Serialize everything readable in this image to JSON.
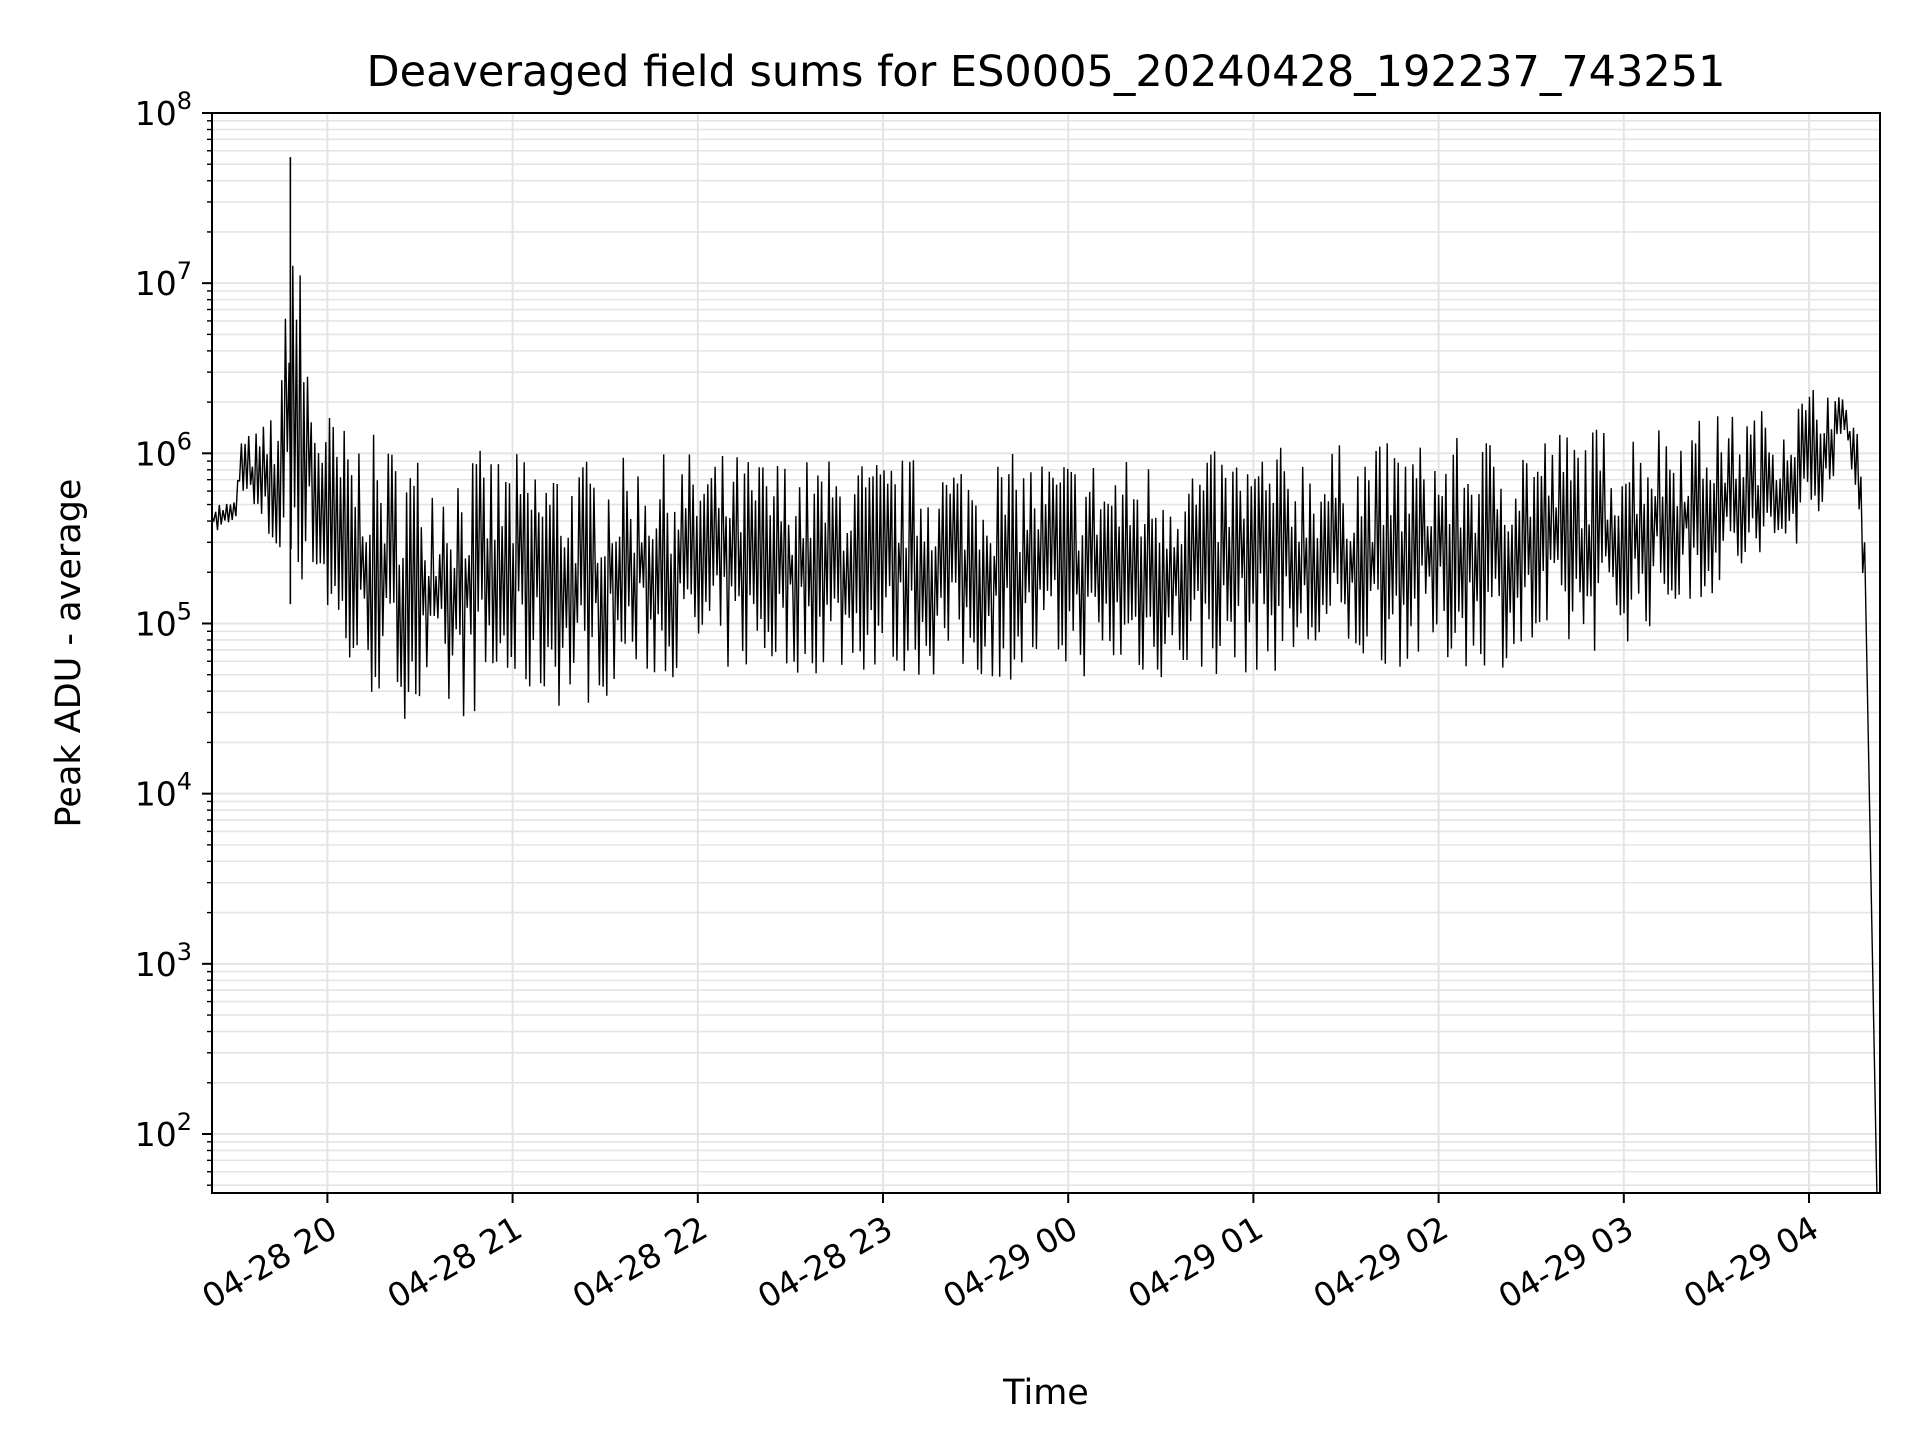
{
  "chart_data": {
    "type": "line",
    "title": "Deaveraged field sums for ES0005_20240428_192237_743251",
    "xlabel": "Time",
    "ylabel": "Peak ADU - average",
    "yscale": "log",
    "ylim": [
      45,
      100000000
    ],
    "xlim": [
      "2024-04-28 19:22:37",
      "2024-04-29 04:23:00"
    ],
    "y_ticks": [
      {
        "base": "10",
        "exp": "2",
        "value": 100
      },
      {
        "base": "10",
        "exp": "3",
        "value": 1000
      },
      {
        "base": "10",
        "exp": "4",
        "value": 10000
      },
      {
        "base": "10",
        "exp": "5",
        "value": 100000
      },
      {
        "base": "10",
        "exp": "6",
        "value": 1000000
      },
      {
        "base": "10",
        "exp": "7",
        "value": 10000000
      },
      {
        "base": "10",
        "exp": "8",
        "value": 100000000
      }
    ],
    "x_ticks": [
      {
        "label": "04-28 20",
        "time": "2024-04-28 20:00"
      },
      {
        "label": "04-28 21",
        "time": "2024-04-28 21:00"
      },
      {
        "label": "04-28 22",
        "time": "2024-04-28 22:00"
      },
      {
        "label": "04-28 23",
        "time": "2024-04-28 23:00"
      },
      {
        "label": "04-29 00",
        "time": "2024-04-29 00:00"
      },
      {
        "label": "04-29 01",
        "time": "2024-04-29 01:00"
      },
      {
        "label": "04-29 02",
        "time": "2024-04-29 02:00"
      },
      {
        "label": "04-29 03",
        "time": "2024-04-29 03:00"
      },
      {
        "label": "04-29 04",
        "time": "2024-04-29 04:00"
      }
    ],
    "grid": true,
    "line_color": "#000000",
    "series": [
      {
        "color": "#000000",
        "points": [
          {
            "x": "2024-04-28 19:22:37",
            "low": 330000,
            "high": 520000
          },
          {
            "x": "2024-04-28 19:30:00",
            "low": 370000,
            "high": 530000
          },
          {
            "x": "2024-04-28 19:32:00",
            "low": 650000,
            "high": 1250000
          },
          {
            "x": "2024-04-28 19:38:00",
            "low": 300000,
            "high": 1400000
          },
          {
            "x": "2024-04-28 19:45:00",
            "low": 200000,
            "high": 2300000
          },
          {
            "x": "2024-04-28 19:48:00",
            "low": 130000,
            "high": 55000000
          },
          {
            "x": "2024-04-28 19:55:00",
            "low": 200000,
            "high": 2400000
          },
          {
            "x": "2024-04-28 20:05:00",
            "low": 45000,
            "high": 1500000
          },
          {
            "x": "2024-04-28 20:20:00",
            "low": 30000,
            "high": 1200000
          },
          {
            "x": "2024-04-28 20:35:00",
            "low": 23000,
            "high": 1000000
          },
          {
            "x": "2024-04-28 20:50:00",
            "low": 30000,
            "high": 1050000
          },
          {
            "x": "2024-04-28 21:05:00",
            "low": 35000,
            "high": 1000000
          },
          {
            "x": "2024-04-28 21:20:00",
            "low": 30000,
            "high": 950000
          },
          {
            "x": "2024-04-28 21:40:00",
            "low": 45000,
            "high": 950000
          },
          {
            "x": "2024-04-28 22:00:00",
            "low": 50000,
            "high": 1050000
          },
          {
            "x": "2024-04-28 22:30:00",
            "low": 50000,
            "high": 950000
          },
          {
            "x": "2024-04-28 23:00:00",
            "low": 50000,
            "high": 950000
          },
          {
            "x": "2024-04-28 23:30:00",
            "low": 45000,
            "high": 1000000
          },
          {
            "x": "2024-04-29 00:00:00",
            "low": 48000,
            "high": 1000000
          },
          {
            "x": "2024-04-29 00:30:00",
            "low": 45000,
            "high": 950000
          },
          {
            "x": "2024-04-29 01:00:00",
            "low": 50000,
            "high": 1100000
          },
          {
            "x": "2024-04-29 01:30:00",
            "low": 55000,
            "high": 1150000
          },
          {
            "x": "2024-04-29 02:00:00",
            "low": 55000,
            "high": 1200000
          },
          {
            "x": "2024-04-29 02:30:00",
            "low": 55000,
            "high": 1400000
          },
          {
            "x": "2024-04-29 03:00:00",
            "low": 75000,
            "high": 1500000
          },
          {
            "x": "2024-04-29 03:30:00",
            "low": 150000,
            "high": 1700000
          },
          {
            "x": "2024-04-29 03:50:00",
            "low": 200000,
            "high": 1900000
          },
          {
            "x": "2024-04-29 04:05:00",
            "low": 500000,
            "high": 2800000
          },
          {
            "x": "2024-04-29 04:12:00",
            "low": 1200000,
            "high": 2000000
          },
          {
            "x": "2024-04-29 04:16:00",
            "low": 350000,
            "high": 1800000
          },
          {
            "x": "2024-04-29 04:18:00",
            "low": 100000,
            "high": 350000
          },
          {
            "x": "2024-04-29 04:22:00",
            "low": 45,
            "high": 1000
          }
        ]
      }
    ]
  }
}
